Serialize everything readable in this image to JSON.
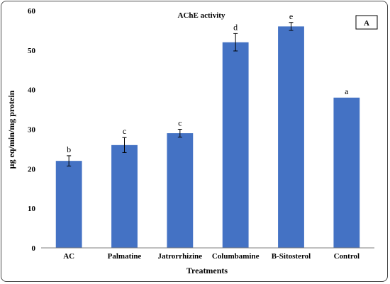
{
  "chart_data": {
    "type": "bar",
    "title": "AChE activity",
    "panel_label": "A",
    "xlabel": "Treatments",
    "ylabel": "µg eq/min/mg protein",
    "ylim": [
      0,
      60
    ],
    "yticks": [
      0,
      10,
      20,
      30,
      40,
      50,
      60
    ],
    "grid": false,
    "categories": [
      "AC",
      "Palmatine",
      "Jatrorrhizine",
      "Columbamine",
      "B-Sitosterol",
      "Control"
    ],
    "series": [
      {
        "values": [
          22,
          26,
          29,
          52,
          56,
          38
        ],
        "errors": [
          1.3,
          1.9,
          1.0,
          2.2,
          1.0,
          0
        ],
        "significance": [
          "b",
          "c",
          "c",
          "d",
          "e",
          "a"
        ],
        "color": "#4472C4"
      }
    ]
  }
}
